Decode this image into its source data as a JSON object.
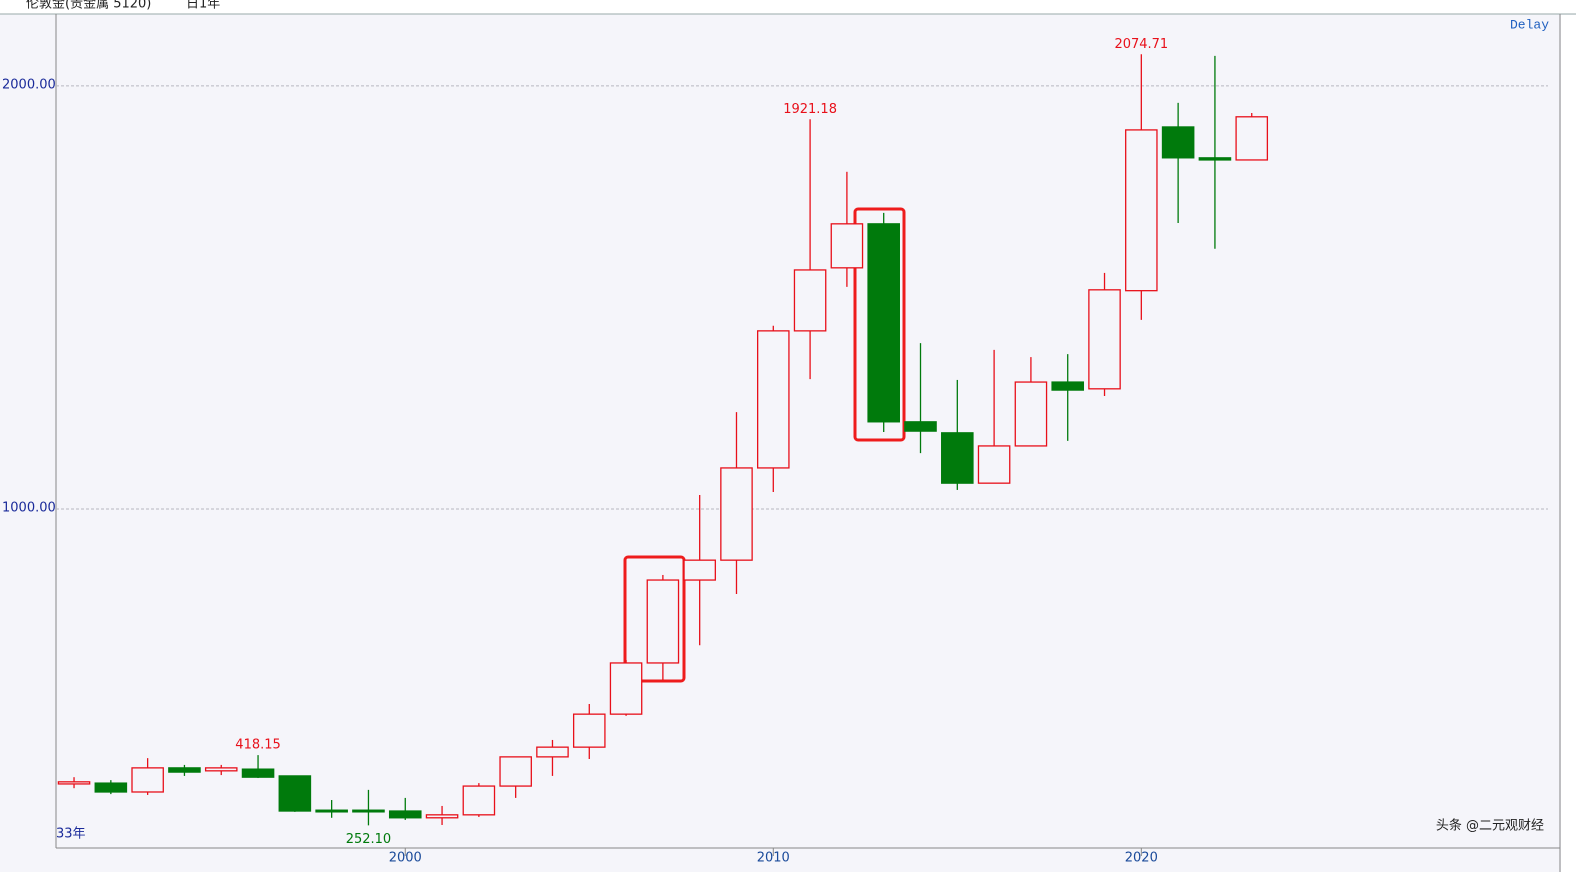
{
  "header": {
    "title": "伦敦金(贵金属 5120)",
    "period": "日1年",
    "status": "Delay"
  },
  "watermark": "头条 @二元观财经",
  "chart_data": {
    "type": "candlestick",
    "count_label": "33年",
    "x": [
      1991,
      1992,
      1993,
      1994,
      1995,
      1996,
      1997,
      1998,
      1999,
      2000,
      2001,
      2002,
      2003,
      2004,
      2005,
      2006,
      2007,
      2008,
      2009,
      2010,
      2011,
      2012,
      2013,
      2014,
      2015,
      2016,
      2017,
      2018,
      2019,
      2020,
      2021,
      2022,
      2023
    ],
    "open": [
      350,
      352,
      331,
      388,
      381,
      385,
      369,
      288,
      288,
      286,
      270,
      277,
      345,
      414,
      437,
      515,
      636,
      832,
      879,
      1097,
      1421,
      1570,
      1674,
      1206,
      1180,
      1061,
      1149,
      1300,
      1284,
      1516,
      1903,
      1830,
      1825
    ],
    "high": [
      366,
      359,
      411,
      395,
      395,
      418.15,
      369,
      312,
      336,
      317,
      298,
      352,
      414,
      454,
      539,
      643,
      844,
      1033,
      1229,
      1433,
      1921.18,
      1797,
      1700,
      1392,
      1305,
      1376,
      1359,
      1366,
      1558,
      2074.71,
      1960,
      2071,
      1936
    ],
    "low": [
      340,
      326,
      324,
      369,
      371,
      364,
      284,
      270,
      252.1,
      265,
      253,
      272,
      317,
      369,
      409,
      511,
      596,
      678,
      799,
      1040,
      1307,
      1525,
      1182,
      1132,
      1045,
      1061,
      1149,
      1161,
      1267,
      1447,
      1676,
      1615,
      1825
    ],
    "close": [
      355,
      331,
      388,
      378,
      388,
      366,
      286,
      284,
      284,
      270,
      277,
      345,
      414,
      437,
      515,
      636,
      832,
      879,
      1097,
      1421,
      1565,
      1674,
      1206,
      1184,
      1061,
      1149,
      1300,
      1281,
      1518,
      1896,
      1830,
      1825,
      1927
    ],
    "up_color": "#e8101a",
    "down_color": "#007a0c",
    "annotations": [
      {
        "text": "418.15",
        "x": 1996,
        "value": 418.15
      },
      {
        "text": "252.10",
        "x": 1999,
        "value": 252.1
      },
      {
        "text": "1921.18",
        "x": 2011,
        "value": 1921.18
      },
      {
        "text": "2074.71",
        "x": 2020,
        "value": 2074.71
      }
    ],
    "xlim": [
      1990.51,
      2031.05
    ],
    "xticks": [
      2000,
      2010,
      2020
    ],
    "ylim": [
      198.6,
      2170
    ],
    "yticks": [
      {
        "value": 1000,
        "label": "1000.00"
      },
      {
        "value": 2000,
        "label": "2000.00"
      }
    ],
    "grid": true
  }
}
